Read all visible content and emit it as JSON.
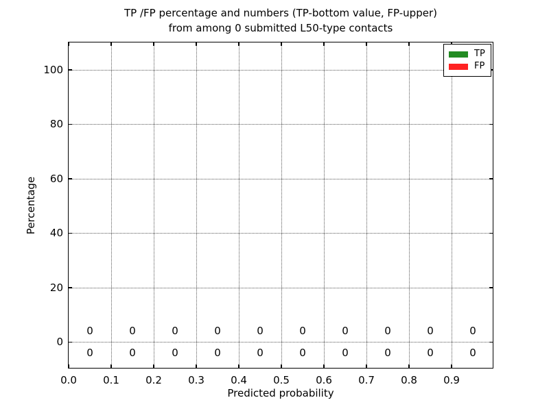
{
  "chart_data": {
    "type": "bar",
    "title_lines": [
      "TP /FP percentage and numbers (TP-bottom value, FP-upper)",
      "from among 0 submitted L50-type contacts"
    ],
    "xlabel": "Predicted probability",
    "ylabel": "Percentage",
    "xlim": [
      0.0,
      1.0
    ],
    "ylim": [
      -10,
      110
    ],
    "x_tick_values": [
      0.0,
      0.1,
      0.2,
      0.3,
      0.4,
      0.5,
      0.6,
      0.7,
      0.8,
      0.9
    ],
    "x_tick_labels": [
      "0.0",
      "0.1",
      "0.2",
      "0.3",
      "0.4",
      "0.5",
      "0.6",
      "0.7",
      "0.8",
      "0.9"
    ],
    "y_tick_values": [
      0,
      20,
      40,
      60,
      80,
      100
    ],
    "y_tick_labels": [
      "0",
      "20",
      "40",
      "60",
      "80",
      "100"
    ],
    "grid": {
      "visible": true,
      "style": "dotted"
    },
    "bin_centers": [
      0.05,
      0.15,
      0.25,
      0.35,
      0.45,
      0.55,
      0.65,
      0.75,
      0.85,
      0.95
    ],
    "series": [
      {
        "name": "TP",
        "color": "#228B22",
        "values": [
          0,
          0,
          0,
          0,
          0,
          0,
          0,
          0,
          0,
          0
        ],
        "annotation_y": -4
      },
      {
        "name": "FP",
        "color": "#FF2222",
        "values": [
          0,
          0,
          0,
          0,
          0,
          0,
          0,
          0,
          0,
          0
        ],
        "annotation_y": 4
      }
    ],
    "legend": {
      "position": "upper right",
      "entries": [
        {
          "label": "TP",
          "color": "#228B22"
        },
        {
          "label": "FP",
          "color": "#FF2222"
        }
      ]
    }
  }
}
